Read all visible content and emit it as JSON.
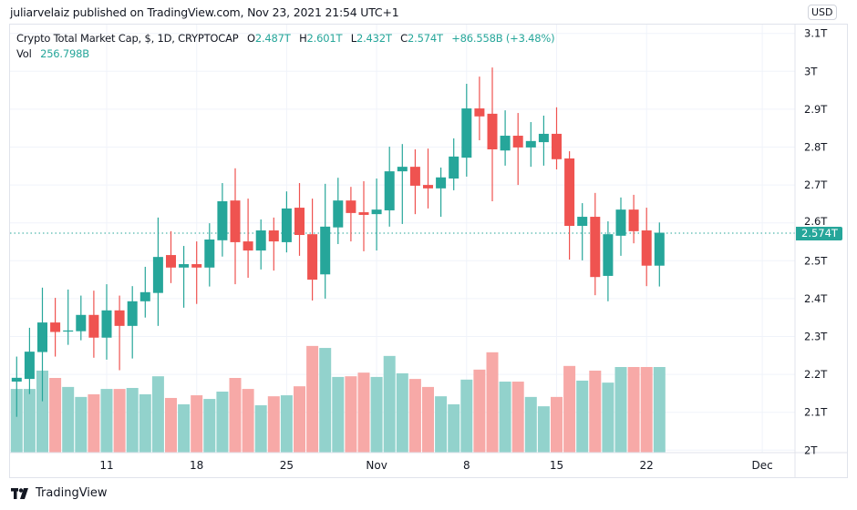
{
  "publisher_line": "juliarvelaiz published on TradingView.com, Nov 23, 2021 21:54 UTC+1",
  "legend": {
    "symbol": "Crypto Total Market Cap, $, 1D, CRYPTOCAP",
    "o_label": "O",
    "o_value": "2.487T",
    "h_label": "H",
    "h_value": "2.601T",
    "l_label": "L",
    "l_value": "2.432T",
    "c_label": "C",
    "c_value": "2.574T",
    "change": "+86.558B (+3.48%)",
    "vol_label": "Vol",
    "vol_value": "256.798B"
  },
  "currency_badge": "USD",
  "last_price_tag": "2.574T",
  "footer": {
    "brand": "TradingView",
    "logo_icon": "tradingview-logo-icon"
  },
  "colors": {
    "up": "#26a69a",
    "down": "#ef5350",
    "volume_up": "#92d2cc",
    "volume_down": "#f7a9a7",
    "grid": "#f0f3fa"
  },
  "chart_data": {
    "type": "candlestick",
    "title": "Crypto Total Market Cap, $, 1D, CRYPTOCAP",
    "ylim": [
      2.0,
      3.1
    ],
    "y_unit": "T",
    "grid": true,
    "y_ticks": [
      {
        "value": 3.1,
        "label": "3.1T"
      },
      {
        "value": 3.0,
        "label": "3T"
      },
      {
        "value": 2.9,
        "label": "2.9T"
      },
      {
        "value": 2.8,
        "label": "2.8T"
      },
      {
        "value": 2.7,
        "label": "2.7T"
      },
      {
        "value": 2.6,
        "label": "2.6T"
      },
      {
        "value": 2.5,
        "label": "2.5T"
      },
      {
        "value": 2.4,
        "label": "2.4T"
      },
      {
        "value": 2.3,
        "label": "2.3T"
      },
      {
        "value": 2.2,
        "label": "2.2T"
      },
      {
        "value": 2.1,
        "label": "2.1T"
      },
      {
        "value": 2.0,
        "label": "2T"
      }
    ],
    "x_ticks": [
      {
        "date": "2021-10-11",
        "label": "11"
      },
      {
        "date": "2021-10-18",
        "label": "18"
      },
      {
        "date": "2021-10-25",
        "label": "25"
      },
      {
        "date": "2021-11-01",
        "label": "Nov"
      },
      {
        "date": "2021-11-08",
        "label": "8"
      },
      {
        "date": "2021-11-15",
        "label": "15"
      },
      {
        "date": "2021-11-22",
        "label": "22"
      },
      {
        "date": "2021-12-01",
        "label": "Dec"
      }
    ],
    "start_date": "2021-10-04",
    "ohlc_unit": "T",
    "ohlc": [
      [
        2.181,
        2.247,
        2.088,
        2.191
      ],
      [
        2.188,
        2.323,
        2.148,
        2.26
      ],
      [
        2.259,
        2.429,
        2.129,
        2.337
      ],
      [
        2.337,
        2.402,
        2.247,
        2.312
      ],
      [
        2.313,
        2.424,
        2.278,
        2.316
      ],
      [
        2.314,
        2.408,
        2.29,
        2.357
      ],
      [
        2.357,
        2.421,
        2.244,
        2.297
      ],
      [
        2.297,
        2.438,
        2.239,
        2.369
      ],
      [
        2.369,
        2.408,
        2.211,
        2.328
      ],
      [
        2.328,
        2.433,
        2.242,
        2.393
      ],
      [
        2.393,
        2.484,
        2.35,
        2.417
      ],
      [
        2.415,
        2.614,
        2.328,
        2.51
      ],
      [
        2.515,
        2.578,
        2.441,
        2.482
      ],
      [
        2.482,
        2.539,
        2.376,
        2.491
      ],
      [
        2.491,
        2.551,
        2.386,
        2.482
      ],
      [
        2.482,
        2.599,
        2.432,
        2.556
      ],
      [
        2.554,
        2.705,
        2.511,
        2.657
      ],
      [
        2.659,
        2.744,
        2.438,
        2.549
      ],
      [
        2.551,
        2.664,
        2.455,
        2.527
      ],
      [
        2.527,
        2.609,
        2.477,
        2.58
      ],
      [
        2.58,
        2.614,
        2.474,
        2.551
      ],
      [
        2.549,
        2.683,
        2.522,
        2.638
      ],
      [
        2.64,
        2.705,
        2.513,
        2.568
      ],
      [
        2.57,
        2.664,
        2.395,
        2.45
      ],
      [
        2.464,
        2.703,
        2.4,
        2.59
      ],
      [
        2.588,
        2.719,
        2.544,
        2.659
      ],
      [
        2.659,
        2.695,
        2.551,
        2.626
      ],
      [
        2.628,
        2.71,
        2.525,
        2.621
      ],
      [
        2.623,
        2.717,
        2.527,
        2.635
      ],
      [
        2.633,
        2.801,
        2.59,
        2.736
      ],
      [
        2.736,
        2.808,
        2.597,
        2.748
      ],
      [
        2.748,
        2.794,
        2.623,
        2.698
      ],
      [
        2.7,
        2.796,
        2.638,
        2.691
      ],
      [
        2.691,
        2.746,
        2.616,
        2.72
      ],
      [
        2.717,
        2.823,
        2.686,
        2.775
      ],
      [
        2.772,
        2.967,
        2.722,
        2.902
      ],
      [
        2.902,
        2.986,
        2.818,
        2.881
      ],
      [
        2.888,
        3.01,
        2.657,
        2.794
      ],
      [
        2.791,
        2.897,
        2.751,
        2.83
      ],
      [
        2.83,
        2.89,
        2.7,
        2.799
      ],
      [
        2.799,
        2.866,
        2.748,
        2.816
      ],
      [
        2.813,
        2.883,
        2.751,
        2.835
      ],
      [
        2.835,
        2.905,
        2.741,
        2.768
      ],
      [
        2.77,
        2.789,
        2.503,
        2.592
      ],
      [
        2.592,
        2.652,
        2.501,
        2.616
      ],
      [
        2.616,
        2.679,
        2.409,
        2.457
      ],
      [
        2.46,
        2.604,
        2.393,
        2.57
      ],
      [
        2.566,
        2.667,
        2.513,
        2.635
      ],
      [
        2.635,
        2.674,
        2.546,
        2.578
      ],
      [
        2.58,
        2.64,
        2.433,
        2.487
      ],
      [
        2.487,
        2.601,
        2.432,
        2.574
      ]
    ],
    "volume_unit": "B",
    "volume": [
      191,
      191,
      246,
      224,
      197,
      167,
      175,
      191,
      191,
      194,
      175,
      229,
      164,
      145,
      172,
      161,
      183,
      224,
      191,
      142,
      169,
      172,
      199,
      320,
      314,
      227,
      229,
      240,
      227,
      290,
      238,
      221,
      197,
      169,
      145,
      219,
      249,
      301,
      213,
      213,
      167,
      139,
      167,
      260,
      216,
      246,
      210,
      256.798,
      256.798,
      256.798,
      256.798
    ],
    "volume_up": [
      1,
      1,
      1,
      0,
      1,
      1,
      0,
      1,
      0,
      1,
      1,
      1,
      0,
      1,
      0,
      1,
      1,
      0,
      0,
      1,
      0,
      1,
      0,
      0,
      1,
      1,
      0,
      0,
      1,
      1,
      1,
      0,
      0,
      1,
      1,
      1,
      0,
      0,
      1,
      0,
      1,
      1,
      0,
      0,
      1,
      0,
      1,
      1,
      0,
      0,
      1
    ]
  }
}
